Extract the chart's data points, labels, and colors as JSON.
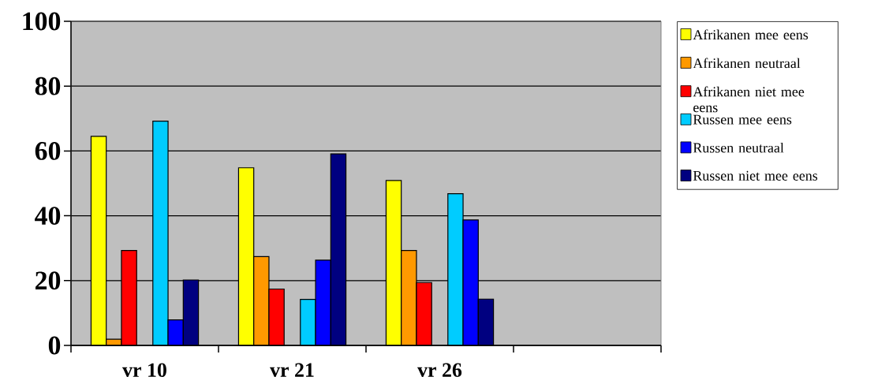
{
  "chart_data": {
    "type": "bar",
    "categories": [
      "vr 10",
      "vr 21",
      "vr 26",
      null
    ],
    "series": [
      {
        "name": "Afrikanen mee eens",
        "color": "#ffff00",
        "values": [
          64.5,
          54.8,
          50.9,
          null
        ]
      },
      {
        "name": "Afrikanen neutraal",
        "color": "#ff9900",
        "values": [
          1.9,
          27.4,
          29.3,
          null
        ]
      },
      {
        "name": "Afrikanen niet mee eens",
        "color": "#ff0000",
        "values": [
          29.3,
          17.4,
          19.4,
          null
        ]
      },
      {
        "name": "Russen mee eens",
        "color": "#00ccff",
        "values": [
          69.2,
          14.2,
          46.8,
          null
        ]
      },
      {
        "name": "Russen neutraal",
        "color": "#0000ff",
        "values": [
          7.9,
          26.3,
          38.7,
          null
        ]
      },
      {
        "name": "Russen niet mee eens",
        "color": "#000080",
        "values": [
          20.2,
          59.1,
          14.3,
          null
        ]
      }
    ],
    "ylim": [
      0,
      100
    ],
    "yticks": [
      0,
      20,
      40,
      60,
      80,
      100
    ],
    "grid": "y",
    "legend": "right"
  }
}
